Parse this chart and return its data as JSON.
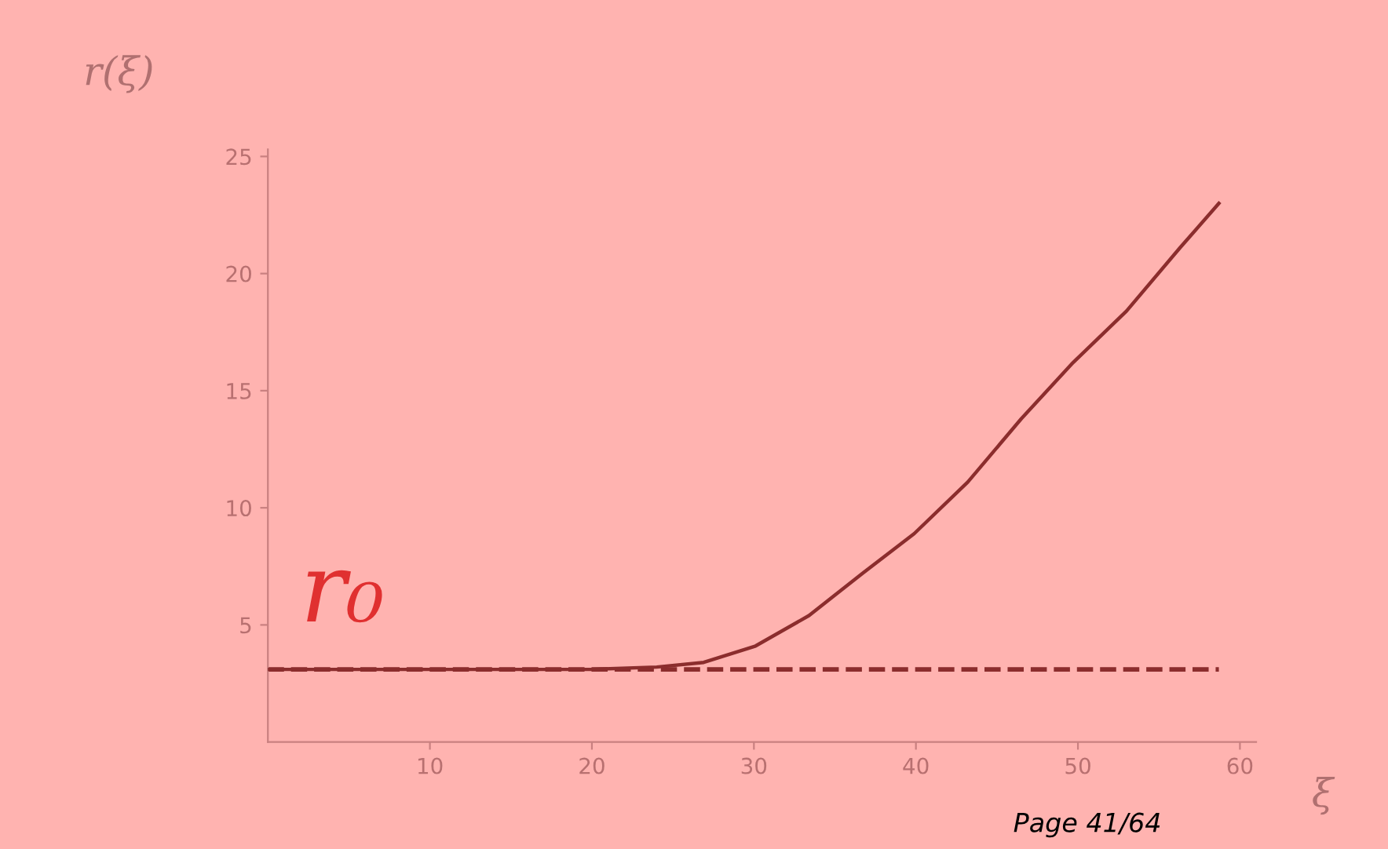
{
  "chart_data": {
    "type": "line",
    "xlabel": "ξ",
    "ylabel": "r(ξ)",
    "x": [
      0,
      10,
      20,
      24,
      26.9,
      30.1,
      33.4,
      36.7,
      39.9,
      43.2,
      46.5,
      49.7,
      53.0,
      56.3,
      58.7
    ],
    "series": [
      {
        "color": "#8b2d2d",
        "values": [
          3.1,
          3.1,
          3.1,
          3.2,
          3.4,
          4.1,
          5.4,
          7.2,
          8.9,
          11.1,
          13.8,
          16.2,
          18.4,
          21.1,
          23.0
        ]
      }
    ],
    "xlim": [
      0,
      61
    ],
    "ylim": [
      0,
      25.3
    ],
    "xticks": [
      10,
      20,
      30,
      40,
      50,
      60
    ],
    "yticks": [
      5,
      10,
      15,
      20,
      25
    ],
    "ref_lines": [
      {
        "axis": "y",
        "value": 3.1,
        "label": "r₀",
        "color": "#8b2d2d",
        "line_style": "dashed"
      }
    ],
    "annotations": [
      "Page 41/64"
    ],
    "grid": false,
    "legend": false,
    "marker": "none",
    "line_style": "solid"
  }
}
